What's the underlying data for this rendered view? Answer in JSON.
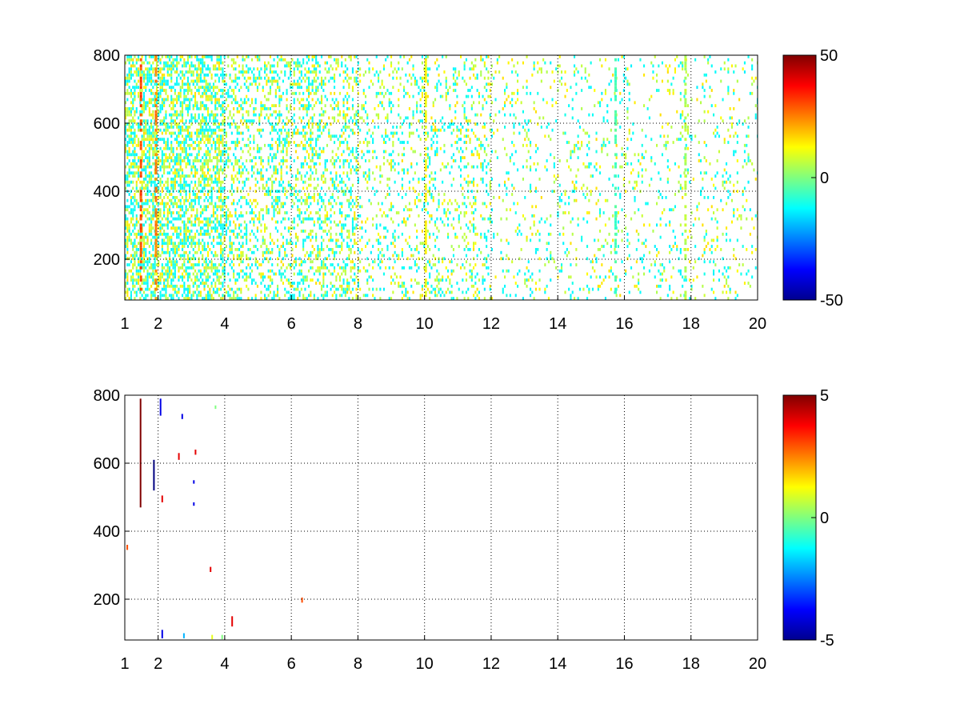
{
  "chart_data": [
    {
      "type": "heatmap",
      "title": "",
      "xlabel": "",
      "ylabel": "",
      "xlim": [
        1,
        20
      ],
      "ylim": [
        80,
        800
      ],
      "x_ticks": [
        1,
        2,
        4,
        6,
        8,
        10,
        12,
        14,
        16,
        18,
        20
      ],
      "x_tick_labels": [
        "1",
        "2",
        "4",
        "6",
        "8",
        "10",
        "12",
        "14",
        "16",
        "18",
        "20"
      ],
      "y_ticks": [
        200,
        400,
        600,
        800
      ],
      "y_tick_labels": [
        "200",
        "400",
        "600",
        "800"
      ],
      "grid": true,
      "colormap": "jet",
      "colorbar": {
        "range": [
          -50,
          50
        ],
        "ticks": [
          50,
          0,
          -50
        ],
        "tick_labels": [
          "50",
          "0",
          "-50"
        ]
      },
      "description_of_values": "sparse scatter of cells: dense cyan/yellow columns for x 1–8, sparser green/cyan/yellow cells for x 8–20",
      "dense_columns": [
        {
          "x": 1.45,
          "value": 30
        },
        {
          "x": 1.9,
          "value": 25
        },
        {
          "x": 10.0,
          "value": 12
        },
        {
          "x": 15.7,
          "value": -5
        },
        {
          "x": 17.8,
          "value": 5
        }
      ],
      "cell_value_distribution": [
        {
          "value": -12,
          "weight": 0.45
        },
        {
          "value": 6,
          "weight": 0.35
        },
        {
          "value": 14,
          "weight": 0.2
        }
      ]
    },
    {
      "type": "heatmap",
      "title": "",
      "xlabel": "",
      "ylabel": "",
      "xlim": [
        1,
        20
      ],
      "ylim": [
        80,
        800
      ],
      "x_ticks": [
        1,
        2,
        4,
        6,
        8,
        10,
        12,
        14,
        16,
        18,
        20
      ],
      "x_tick_labels": [
        "1",
        "2",
        "4",
        "6",
        "8",
        "10",
        "12",
        "14",
        "16",
        "18",
        "20"
      ],
      "y_ticks": [
        200,
        400,
        600,
        800
      ],
      "y_tick_labels": [
        "200",
        "400",
        "600",
        "800"
      ],
      "grid": true,
      "colormap": "jet",
      "colorbar": {
        "range": [
          -5,
          5
        ],
        "ticks": [
          5,
          0,
          -5
        ],
        "tick_labels": [
          "5",
          "0",
          "-5"
        ]
      },
      "points": [
        {
          "x": 1.45,
          "y0": 470,
          "y1": 790,
          "value": 5
        },
        {
          "x": 1.85,
          "y0": 520,
          "y1": 610,
          "value": -5
        },
        {
          "x": 2.05,
          "y0": 740,
          "y1": 790,
          "value": -4
        },
        {
          "x": 2.1,
          "y0": 485,
          "y1": 505,
          "value": 4
        },
        {
          "x": 2.6,
          "y0": 610,
          "y1": 630,
          "value": 4
        },
        {
          "x": 2.7,
          "y0": 730,
          "y1": 745,
          "value": -4
        },
        {
          "x": 3.05,
          "y0": 475,
          "y1": 485,
          "value": -4
        },
        {
          "x": 3.05,
          "y0": 540,
          "y1": 550,
          "value": -4
        },
        {
          "x": 3.1,
          "y0": 625,
          "y1": 640,
          "value": 4
        },
        {
          "x": 3.55,
          "y0": 280,
          "y1": 295,
          "value": 4
        },
        {
          "x": 3.7,
          "y0": 760,
          "y1": 770,
          "value": 0
        },
        {
          "x": 4.2,
          "y0": 120,
          "y1": 150,
          "value": 4
        },
        {
          "x": 2.1,
          "y0": 85,
          "y1": 110,
          "value": -4
        },
        {
          "x": 2.75,
          "y0": 85,
          "y1": 100,
          "value": -2
        },
        {
          "x": 3.6,
          "y0": 82,
          "y1": 95,
          "value": 1
        },
        {
          "x": 3.9,
          "y0": 82,
          "y1": 95,
          "value": 0
        },
        {
          "x": 6.3,
          "y0": 190,
          "y1": 205,
          "value": 3
        },
        {
          "x": 1.05,
          "y0": 345,
          "y1": 360,
          "value": 3
        }
      ]
    }
  ]
}
